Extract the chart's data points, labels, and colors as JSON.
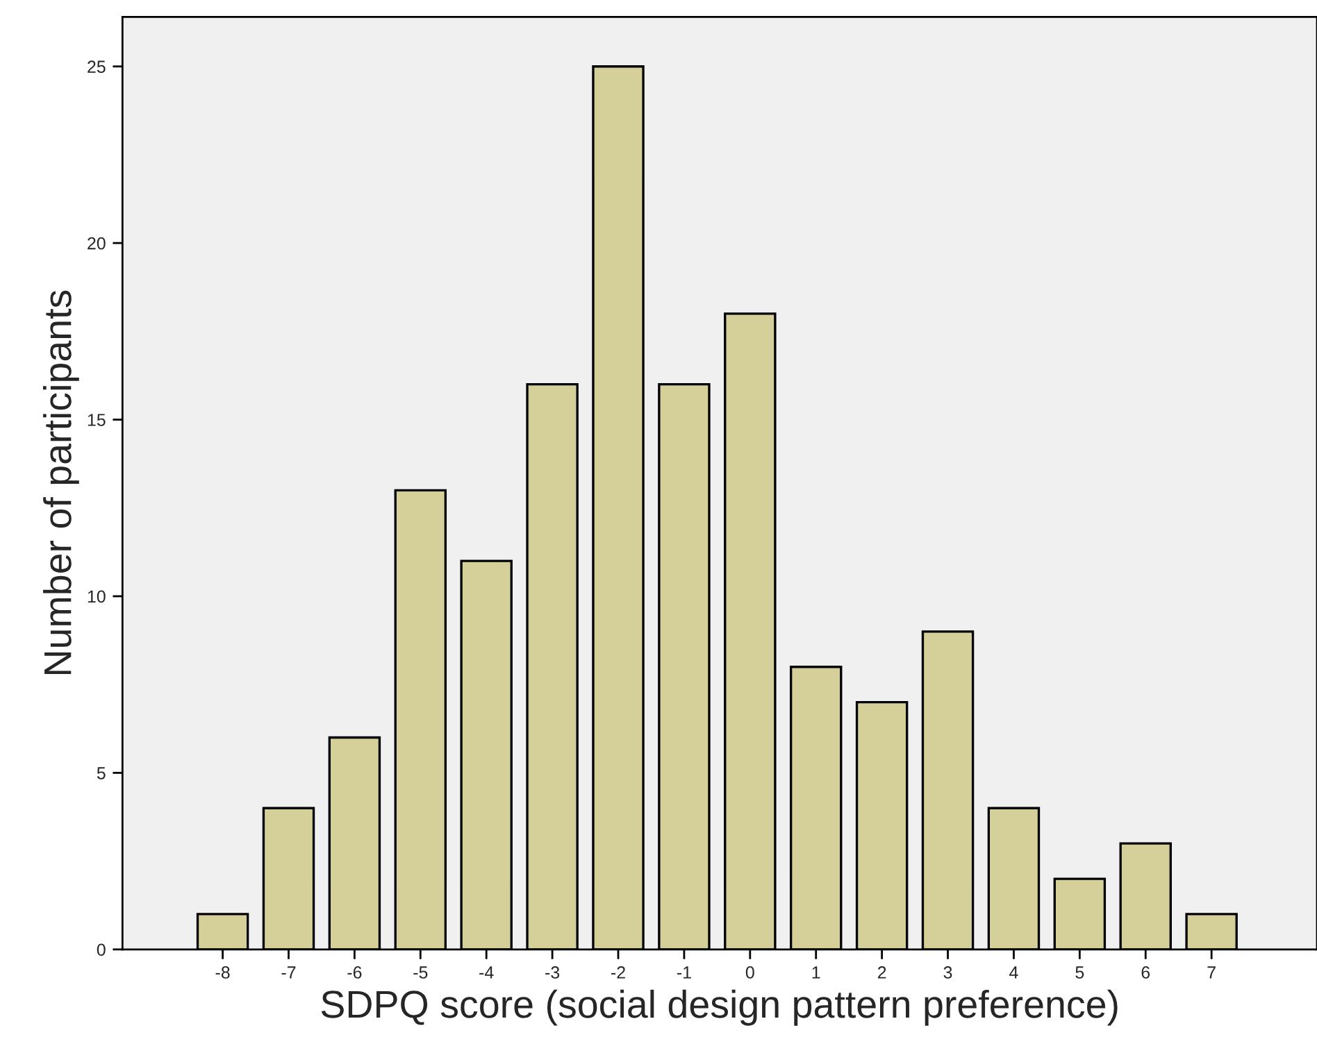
{
  "chart_data": {
    "type": "bar",
    "xlabel": "SDPQ score (social design pattern preference)",
    "ylabel": "Number of participants",
    "categories": [
      "-8",
      "-7",
      "-6",
      "-5",
      "-4",
      "-3",
      "-2",
      "-1",
      "0",
      "1",
      "2",
      "3",
      "4",
      "5",
      "6",
      "7"
    ],
    "values": [
      1,
      4,
      6,
      13,
      11,
      16,
      25,
      16,
      18,
      8,
      7,
      9,
      4,
      2,
      3,
      1
    ],
    "color": "#d5d099",
    "ylim": [
      0,
      26.4
    ],
    "yticks": [
      0,
      5,
      10,
      15,
      20,
      25
    ],
    "grid": false,
    "legend": false
  }
}
